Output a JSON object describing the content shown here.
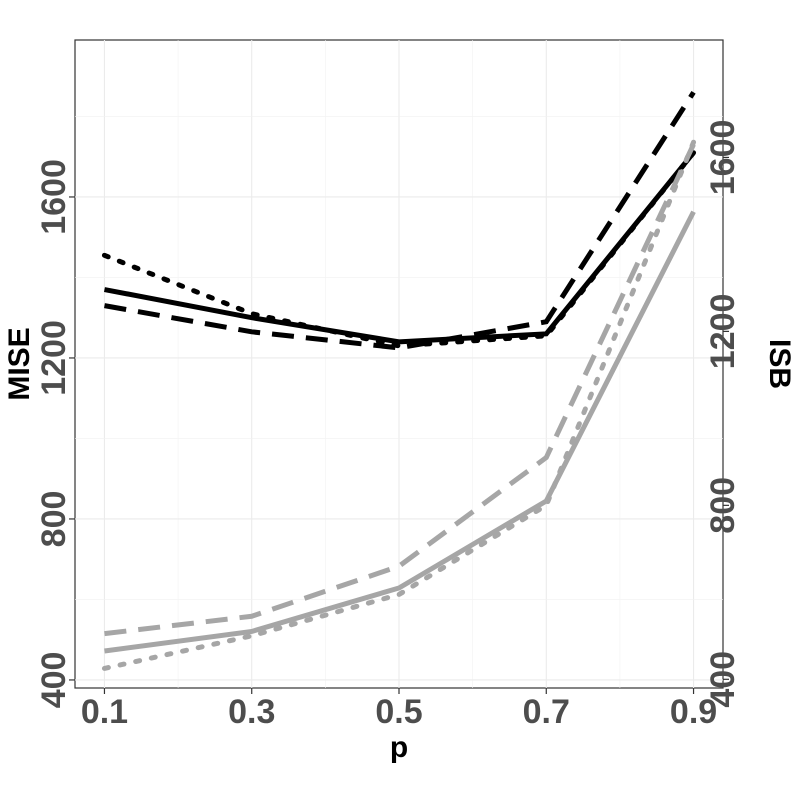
{
  "chart_data": {
    "type": "line",
    "title": "",
    "xlabel": "p",
    "ylabel_left": "MISE",
    "ylabel_right": "ISB",
    "x": [
      0.1,
      0.3,
      0.5,
      0.7,
      0.9
    ],
    "x_tick_labels": [
      "0.1",
      "0.3",
      "0.5",
      "0.7",
      "0.9"
    ],
    "xlim": [
      0.06,
      0.94
    ],
    "left_axis": {
      "ylim": [
        380,
        1990
      ],
      "ticks": [
        400,
        800,
        1200,
        1600
      ]
    },
    "right_axis": {
      "ylim": [
        380,
        1870
      ],
      "ticks": [
        400,
        800,
        1200,
        1600
      ]
    },
    "grid": true,
    "legend": "none",
    "series": [
      {
        "axis": "left",
        "color": "#000000",
        "linestyle": "solid",
        "values": [
          1370,
          1300,
          1240,
          1260,
          1710
        ]
      },
      {
        "axis": "left",
        "color": "#000000",
        "linestyle": "dashed",
        "values": [
          1330,
          1265,
          1225,
          1290,
          1860
        ]
      },
      {
        "axis": "left",
        "color": "#000000",
        "linestyle": "dotted",
        "values": [
          1455,
          1310,
          1230,
          1255,
          1710
        ]
      },
      {
        "axis": "right",
        "color": "#a6a6a6",
        "linestyle": "solid",
        "values": [
          465,
          510,
          610,
          810,
          1475
        ]
      },
      {
        "axis": "right",
        "color": "#a6a6a6",
        "linestyle": "dashed",
        "values": [
          505,
          545,
          660,
          910,
          1630
        ]
      },
      {
        "axis": "right",
        "color": "#a6a6a6",
        "linestyle": "dotted",
        "values": [
          425,
          500,
          595,
          800,
          1635
        ]
      }
    ]
  }
}
